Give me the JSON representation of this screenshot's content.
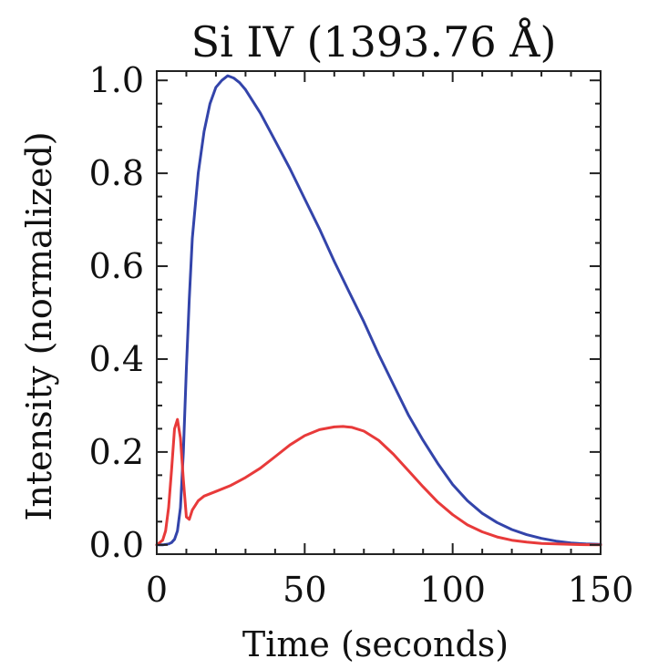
{
  "chart_data": {
    "type": "line",
    "title": "Si IV (1393.76 Å)",
    "xlabel": "Time (seconds)",
    "ylabel": "Intensity (normalized)",
    "xlim": [
      0,
      150
    ],
    "ylim": [
      -0.02,
      1.02
    ],
    "xticks": [
      0,
      50,
      100,
      150
    ],
    "xtick_labels": [
      "0",
      "50",
      "100",
      "150"
    ],
    "yticks": [
      0.0,
      0.2,
      0.4,
      0.6,
      0.8,
      1.0
    ],
    "ytick_labels": [
      "0.0",
      "0.2",
      "0.4",
      "0.6",
      "0.8",
      "1.0"
    ],
    "grid": false,
    "series": [
      {
        "color": "#3344aa",
        "x": [
          0,
          2,
          4,
          5,
          6,
          7,
          8,
          9,
          10,
          11,
          12,
          14,
          16,
          18,
          20,
          22,
          24,
          26,
          28,
          30,
          35,
          40,
          45,
          50,
          55,
          60,
          65,
          70,
          75,
          80,
          85,
          90,
          95,
          100,
          105,
          110,
          115,
          120,
          125,
          130,
          135,
          140,
          145,
          150
        ],
        "y": [
          0,
          0,
          0.002,
          0.005,
          0.012,
          0.03,
          0.08,
          0.2,
          0.38,
          0.53,
          0.66,
          0.8,
          0.89,
          0.95,
          0.985,
          1.0,
          1.01,
          1.005,
          0.995,
          0.98,
          0.93,
          0.87,
          0.81,
          0.745,
          0.68,
          0.61,
          0.545,
          0.48,
          0.41,
          0.345,
          0.28,
          0.225,
          0.175,
          0.13,
          0.095,
          0.068,
          0.048,
          0.033,
          0.022,
          0.014,
          0.008,
          0.004,
          0.002,
          0.001
        ]
      },
      {
        "color": "#e83a3a",
        "x": [
          0,
          2,
          3,
          4,
          5,
          6,
          7,
          8,
          9,
          10,
          11,
          12,
          14,
          16,
          20,
          25,
          30,
          35,
          40,
          45,
          50,
          55,
          60,
          63,
          66,
          70,
          75,
          80,
          85,
          90,
          95,
          100,
          105,
          110,
          115,
          120,
          125,
          130,
          135,
          140,
          145,
          150
        ],
        "y": [
          0,
          0.01,
          0.03,
          0.08,
          0.16,
          0.25,
          0.27,
          0.23,
          0.14,
          0.06,
          0.055,
          0.075,
          0.095,
          0.105,
          0.115,
          0.128,
          0.145,
          0.165,
          0.19,
          0.215,
          0.235,
          0.248,
          0.254,
          0.255,
          0.253,
          0.245,
          0.225,
          0.195,
          0.16,
          0.125,
          0.092,
          0.065,
          0.043,
          0.028,
          0.017,
          0.01,
          0.006,
          0.003,
          0.002,
          0.001,
          0.0005,
          0
        ]
      }
    ]
  }
}
